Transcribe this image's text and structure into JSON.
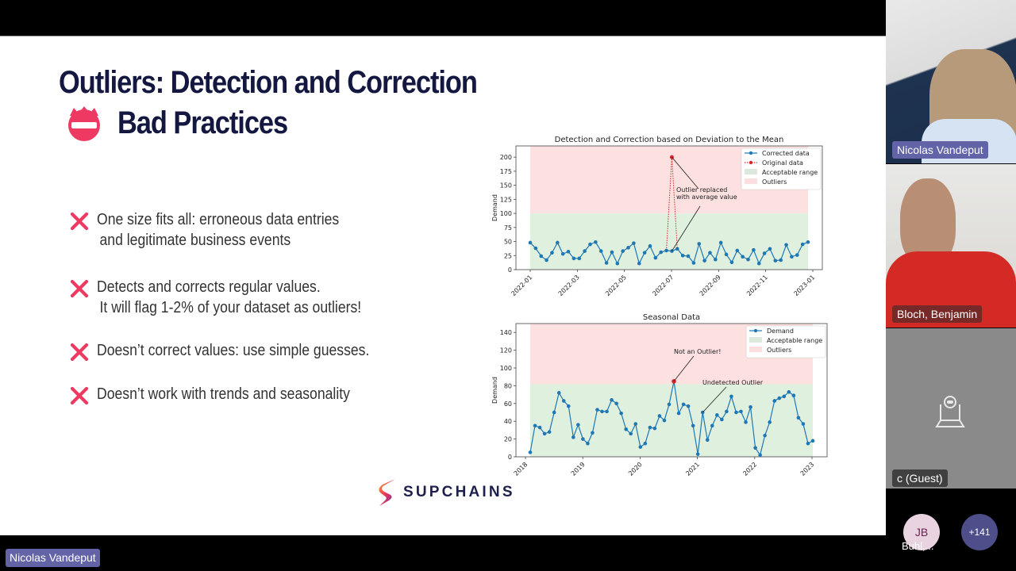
{
  "slide": {
    "title": "Outliers: Detection and Correction",
    "subtitle": "Bad Practices",
    "subtitle_icon": "no-entry-badge-icon",
    "accent_color": "#ee3a62",
    "title_color": "#14173f",
    "bullets": [
      {
        "icon": "cross-mark-icon",
        "line1": "One size fits all: erroneous data entries",
        "line2": "and legitimate business events"
      },
      {
        "icon": "cross-mark-icon",
        "line1": "Detects and corrects regular values.",
        "line2": "It will flag 1-2% of your dataset as outliers!"
      },
      {
        "icon": "cross-mark-icon",
        "line1": "Doesn’t correct values: use simple guesses.",
        "line2": ""
      },
      {
        "icon": "cross-mark-icon",
        "line1": "Doesn’t work with trends and seasonality",
        "line2": ""
      }
    ],
    "logo_text": "SUPCHAINS"
  },
  "chart_data": [
    {
      "type": "line",
      "title": "Detection and Correction based on Deviation to the Mean",
      "xlabel": "",
      "ylabel": "Demand",
      "ylim": [
        0,
        220
      ],
      "yticks": [
        0,
        25,
        50,
        75,
        100,
        125,
        150,
        175,
        200
      ],
      "xticks": [
        "2022-01",
        "2022-03",
        "2022-05",
        "2022-07",
        "2022-09",
        "2022-11",
        "2023-01"
      ],
      "grid": false,
      "legend_position": "upper right",
      "bands": [
        {
          "name": "Acceptable range",
          "from": 0,
          "to": 100,
          "color": "#dff0df"
        },
        {
          "name": "Outliers",
          "from": 100,
          "to": 220,
          "color": "#fde0e0"
        }
      ],
      "series": [
        {
          "name": "Corrected data",
          "style": "solid-marker",
          "color": "#1f77b4",
          "values": [
            48,
            38,
            24,
            17,
            30,
            48,
            28,
            32,
            20,
            20,
            33,
            45,
            49,
            33,
            12,
            31,
            11,
            33,
            39,
            47,
            11,
            30,
            42,
            21,
            31,
            34,
            33,
            37,
            25,
            24,
            12,
            46,
            16,
            30,
            18,
            48,
            27,
            13,
            34,
            23,
            18,
            35,
            11,
            29,
            37,
            16,
            17,
            44,
            23,
            26,
            45,
            49
          ]
        },
        {
          "name": "Original data",
          "style": "dotted-marker",
          "color": "#d62728",
          "points": [
            {
              "index": 25,
              "value": 34
            },
            {
              "index": 26,
              "value": 200
            },
            {
              "index": 27,
              "value": 37
            }
          ]
        }
      ],
      "annotations": [
        {
          "text": "Outlier replaced with average value",
          "points_to": [
            {
              "index": 26,
              "value": 200
            },
            {
              "index": 26,
              "value": 33
            }
          ]
        }
      ]
    },
    {
      "type": "line",
      "title": "Seasonal Data",
      "xlabel": "",
      "ylabel": "Demand",
      "ylim": [
        0,
        150
      ],
      "yticks": [
        0,
        20,
        40,
        60,
        80,
        100,
        120,
        140
      ],
      "xticks": [
        "2018",
        "2019",
        "2020",
        "2021",
        "2022",
        "2023"
      ],
      "grid": false,
      "legend_position": "upper right",
      "bands": [
        {
          "name": "Acceptable range",
          "from": 0,
          "to": 82,
          "color": "#dff0df"
        },
        {
          "name": "Outliers",
          "from": 82,
          "to": 150,
          "color": "#fde0e0"
        }
      ],
      "series": [
        {
          "name": "Demand",
          "style": "solid-marker",
          "color": "#1f77b4",
          "values": [
            5,
            35,
            33,
            26,
            28,
            50,
            72,
            63,
            57,
            22,
            36,
            20,
            15,
            27,
            53,
            51,
            51,
            64,
            60,
            49,
            31,
            26,
            37,
            11,
            15,
            33,
            32,
            46,
            41,
            59,
            85,
            49,
            59,
            57,
            35,
            3,
            50,
            19,
            35,
            47,
            42,
            51,
            68,
            50,
            51,
            39,
            56,
            10,
            2,
            24,
            39,
            63,
            66,
            68,
            73,
            69,
            44,
            37,
            15,
            18
          ]
        }
      ],
      "annotations": [
        {
          "text": "Not an Outlier!",
          "index": 30,
          "value": 85
        },
        {
          "text": "Undetected Outlier",
          "index": 36,
          "value": 50
        }
      ]
    }
  ],
  "participants": {
    "tiles": [
      {
        "name": "Nicolas Vandeput",
        "tag_color": "#6264a7"
      },
      {
        "name": "Bloch, Benjamin",
        "tag_color": "rgba(40,40,40,0.75)"
      },
      {
        "name": "c (Guest)",
        "tag_color": "rgba(50,50,50,0.85)",
        "camera_off_icon": "camera-off-icon"
      }
    ],
    "avatar_initials": "JB",
    "avatar_name": "Buhl,...",
    "overflow_count": "+141"
  },
  "presenter_label": "Nicolas Vandeput"
}
